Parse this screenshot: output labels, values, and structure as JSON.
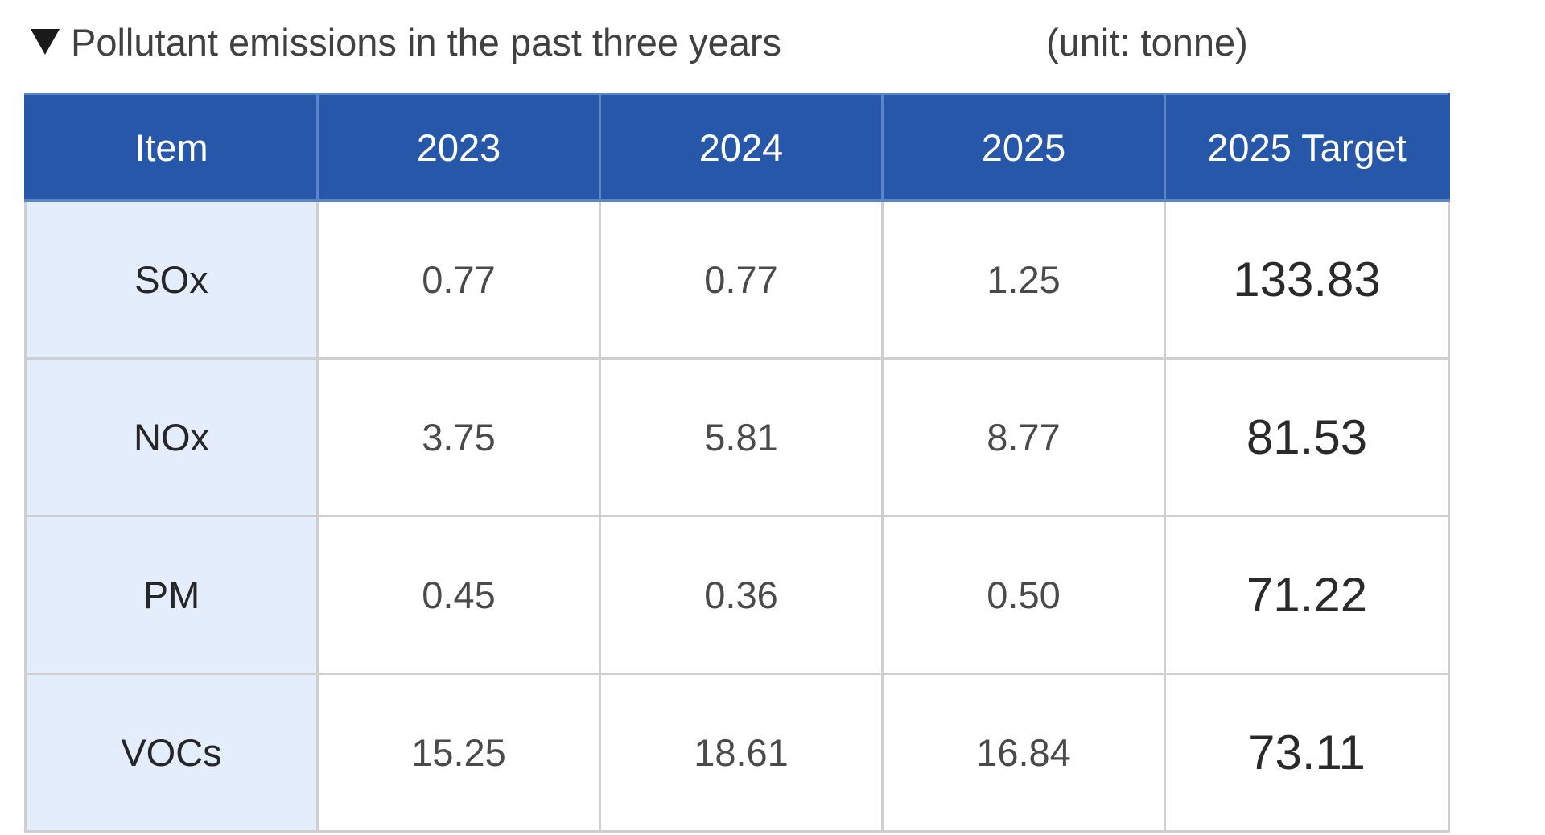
{
  "caption": {
    "arrow_glyph": "▼",
    "title": "Pollutant emissions in the past three years",
    "unit": "(unit: tonne)"
  },
  "table": {
    "headers": [
      "Item",
      "2023",
      "2024",
      "2025",
      "2025 Target"
    ],
    "rows": [
      {
        "item": "SOx",
        "y2023": "0.77",
        "y2024": "0.77",
        "y2025": "1.25",
        "target": "133.83"
      },
      {
        "item": "NOx",
        "y2023": "3.75",
        "y2024": "5.81",
        "y2025": "8.77",
        "target": "81.53"
      },
      {
        "item": "PM",
        "y2023": "0.45",
        "y2024": "0.36",
        "y2025": "0.50",
        "target": "71.22"
      },
      {
        "item": "VOCs",
        "y2023": "15.25",
        "y2024": "18.61",
        "y2025": "16.84",
        "target": "73.11"
      }
    ]
  },
  "colors": {
    "header_background": "#2757a9",
    "header_text": "#ffffff",
    "item_column_background": "#e4edfc",
    "grid_line": "#cfcfcf"
  }
}
